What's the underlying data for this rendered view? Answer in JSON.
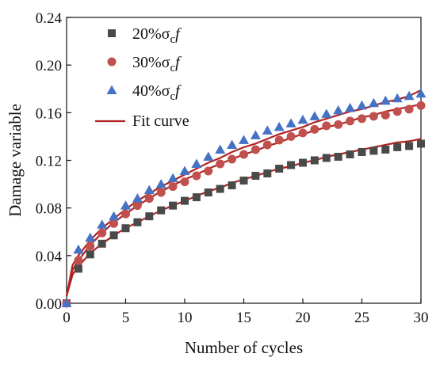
{
  "chart_data": {
    "type": "scatter",
    "title": "",
    "xlabel": "Number of cycles",
    "ylabel": "Damage variable",
    "xlim": [
      0,
      30
    ],
    "ylim": [
      0,
      0.24
    ],
    "xticks": [
      0,
      5,
      10,
      15,
      20,
      25,
      30
    ],
    "xtick_labels": [
      "0",
      "5",
      "10",
      "15",
      "20",
      "25",
      "30"
    ],
    "yticks": [
      0,
      0.04,
      0.08,
      0.12,
      0.16,
      0.2,
      0.24
    ],
    "ytick_labels": [
      "0.00",
      "0.04",
      "0.08",
      "0.12",
      "0.16",
      "0.20",
      "0.24"
    ],
    "grid": false,
    "legend_position": "top-left",
    "series": [
      {
        "name": "20%σcf",
        "legend_main": "20%σ",
        "legend_sub": "c",
        "legend_tail": "f",
        "marker": "square",
        "color": "#4a4a4a",
        "x": [
          0,
          1,
          2,
          3,
          4,
          5,
          6,
          7,
          8,
          9,
          10,
          11,
          12,
          13,
          14,
          15,
          16,
          17,
          18,
          19,
          20,
          21,
          22,
          23,
          24,
          25,
          26,
          27,
          28,
          29,
          30
        ],
        "y": [
          0.0,
          0.029,
          0.041,
          0.05,
          0.057,
          0.063,
          0.068,
          0.073,
          0.078,
          0.082,
          0.086,
          0.089,
          0.093,
          0.096,
          0.099,
          0.103,
          0.107,
          0.109,
          0.113,
          0.116,
          0.118,
          0.12,
          0.122,
          0.123,
          0.125,
          0.127,
          0.128,
          0.129,
          0.131,
          0.132,
          0.134
        ]
      },
      {
        "name": "30%σcf",
        "legend_main": "30%σ",
        "legend_sub": "c",
        "legend_tail": "f",
        "marker": "circle",
        "color": "#c0504d",
        "x": [
          0,
          1,
          2,
          3,
          4,
          5,
          6,
          7,
          8,
          9,
          10,
          11,
          12,
          13,
          14,
          15,
          16,
          17,
          18,
          19,
          20,
          21,
          22,
          23,
          24,
          25,
          26,
          27,
          28,
          29,
          30
        ],
        "y": [
          0.0,
          0.036,
          0.048,
          0.059,
          0.067,
          0.075,
          0.082,
          0.088,
          0.093,
          0.098,
          0.102,
          0.107,
          0.111,
          0.117,
          0.121,
          0.125,
          0.129,
          0.133,
          0.137,
          0.14,
          0.143,
          0.146,
          0.149,
          0.15,
          0.153,
          0.155,
          0.157,
          0.158,
          0.161,
          0.163,
          0.166
        ]
      },
      {
        "name": "40%σcf",
        "legend_main": "40%σ",
        "legend_sub": "c",
        "legend_tail": "f",
        "marker": "triangle",
        "color": "#4472c4",
        "x": [
          0,
          1,
          2,
          3,
          4,
          5,
          6,
          7,
          8,
          9,
          10,
          11,
          12,
          13,
          14,
          15,
          16,
          17,
          18,
          19,
          20,
          21,
          22,
          23,
          24,
          25,
          26,
          27,
          28,
          29,
          30
        ],
        "y": [
          0.0,
          0.045,
          0.055,
          0.066,
          0.073,
          0.082,
          0.088,
          0.095,
          0.1,
          0.105,
          0.111,
          0.117,
          0.123,
          0.129,
          0.133,
          0.137,
          0.141,
          0.145,
          0.148,
          0.151,
          0.154,
          0.157,
          0.159,
          0.162,
          0.164,
          0.166,
          0.168,
          0.17,
          0.172,
          0.174,
          0.176
        ]
      }
    ],
    "fit_curves": [
      {
        "name": "Fit curve",
        "color": "#b22222",
        "x": [
          0,
          0.5,
          1,
          2,
          3,
          4,
          5,
          6,
          7,
          8,
          9,
          10,
          11,
          12,
          13,
          14,
          15,
          16,
          17,
          18,
          19,
          20,
          21,
          22,
          23,
          24,
          25,
          26,
          27,
          28,
          29,
          30
        ],
        "y": [
          0.006,
          0.024,
          0.031,
          0.042,
          0.05,
          0.057,
          0.063,
          0.068,
          0.073,
          0.078,
          0.082,
          0.086,
          0.09,
          0.094,
          0.097,
          0.101,
          0.104,
          0.107,
          0.11,
          0.113,
          0.115,
          0.118,
          0.12,
          0.123,
          0.125,
          0.127,
          0.129,
          0.131,
          0.133,
          0.135,
          0.136,
          0.138
        ]
      },
      {
        "name": "Fit curve",
        "color": "#b22222",
        "x": [
          0,
          0.5,
          1,
          2,
          3,
          4,
          5,
          6,
          7,
          8,
          9,
          10,
          11,
          12,
          13,
          14,
          15,
          16,
          17,
          18,
          19,
          20,
          21,
          22,
          23,
          24,
          25,
          26,
          27,
          28,
          29,
          30
        ],
        "y": [
          0.006,
          0.028,
          0.036,
          0.049,
          0.059,
          0.068,
          0.075,
          0.082,
          0.088,
          0.094,
          0.099,
          0.104,
          0.108,
          0.113,
          0.117,
          0.121,
          0.125,
          0.128,
          0.132,
          0.135,
          0.139,
          0.142,
          0.145,
          0.148,
          0.15,
          0.153,
          0.156,
          0.158,
          0.161,
          0.163,
          0.165,
          0.167
        ]
      },
      {
        "name": "Fit curve",
        "color": "#b22222",
        "x": [
          0,
          0.5,
          1,
          2,
          3,
          4,
          5,
          6,
          7,
          8,
          9,
          10,
          11,
          12,
          13,
          14,
          15,
          16,
          17,
          18,
          19,
          20,
          21,
          22,
          23,
          24,
          25,
          26,
          27,
          28,
          29,
          30
        ],
        "y": [
          0.006,
          0.032,
          0.04,
          0.053,
          0.063,
          0.071,
          0.079,
          0.086,
          0.092,
          0.098,
          0.103,
          0.108,
          0.113,
          0.118,
          0.122,
          0.127,
          0.131,
          0.134,
          0.138,
          0.142,
          0.145,
          0.148,
          0.152,
          0.155,
          0.158,
          0.161,
          0.163,
          0.166,
          0.169,
          0.171,
          0.174,
          0.179
        ]
      }
    ],
    "legend": {
      "fit_label": "Fit curve"
    }
  }
}
